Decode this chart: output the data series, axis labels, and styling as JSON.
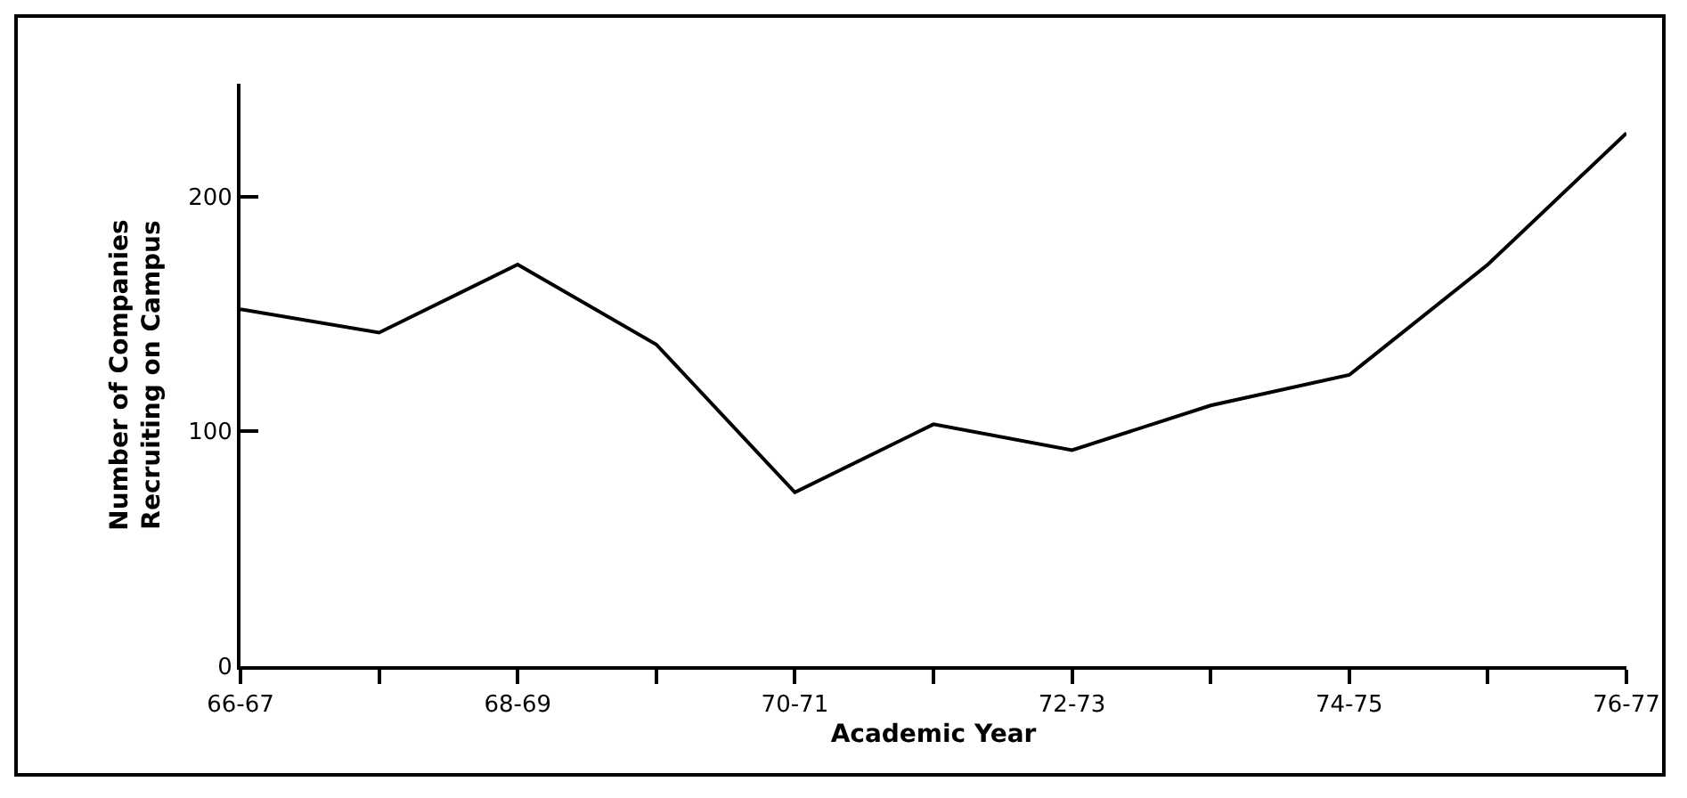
{
  "chart_data": {
    "type": "line",
    "xlabel": "Academic Year",
    "ylabel": "Number of Companies\nRecruiting on Campus",
    "categories": [
      "66-67",
      null,
      "68-69",
      null,
      "70-71",
      null,
      "72-73",
      null,
      "74-75",
      null,
      "76-77"
    ],
    "series": [
      {
        "color": "#000000",
        "values": [
          152,
          142,
          171,
          137,
          74,
          103,
          92,
          111,
          124,
          171,
          227
        ]
      }
    ],
    "ylim": [
      0,
      248
    ],
    "yticks": [
      0,
      100,
      200
    ],
    "grid": false,
    "legend": false,
    "marker": "none",
    "line_style": "solid"
  }
}
